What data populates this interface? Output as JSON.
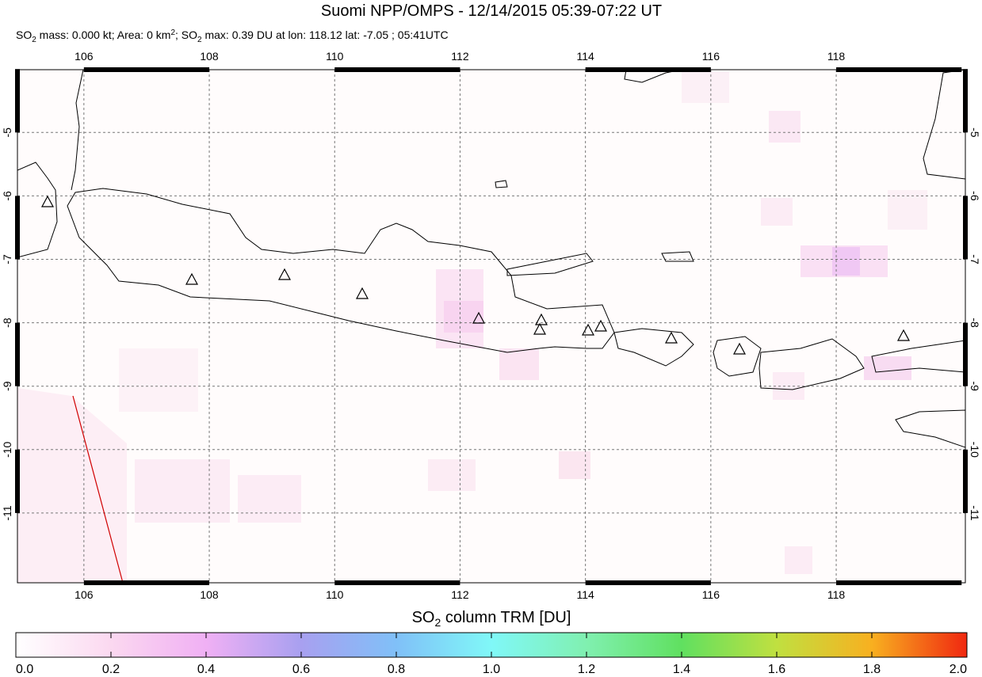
{
  "header": {
    "title": "Suomi NPP/OMPS - 12/14/2015 05:39-07:22 UT",
    "subtitle": [
      "SO",
      "2",
      " mass: 0.000 kt; Area: 0 km",
      "2",
      "; SO",
      "2",
      " max: 0.39 DU at lon: 118.12 lat: -7.05 ; 05:41UTC"
    ]
  },
  "map": {
    "xlim": [
      104.94,
      120.06
    ],
    "ylim": [
      -12.1,
      -4.01
    ],
    "xticks": [
      106,
      108,
      110,
      112,
      114,
      116,
      118
    ],
    "yticks": [
      -5,
      -6,
      -7,
      -8,
      -9,
      -10,
      -11
    ]
  },
  "colorbar": {
    "title": [
      "SO",
      "2",
      " column TRM [DU]"
    ],
    "lim": [
      0,
      2
    ],
    "ticks": [
      {
        "value": 0,
        "label": "0.0"
      },
      {
        "value": 0.2,
        "label": "0.2"
      },
      {
        "value": 0.4,
        "label": "0.4"
      },
      {
        "value": 0.6,
        "label": "0.6"
      },
      {
        "value": 0.8,
        "label": "0.8"
      },
      {
        "value": 1,
        "label": "1.0"
      },
      {
        "value": 1.2,
        "label": "1.2"
      },
      {
        "value": 1.4,
        "label": "1.4"
      },
      {
        "value": 1.6,
        "label": "1.6"
      },
      {
        "value": 1.8,
        "label": "1.8"
      },
      {
        "value": 2,
        "label": "2.0"
      }
    ]
  }
}
